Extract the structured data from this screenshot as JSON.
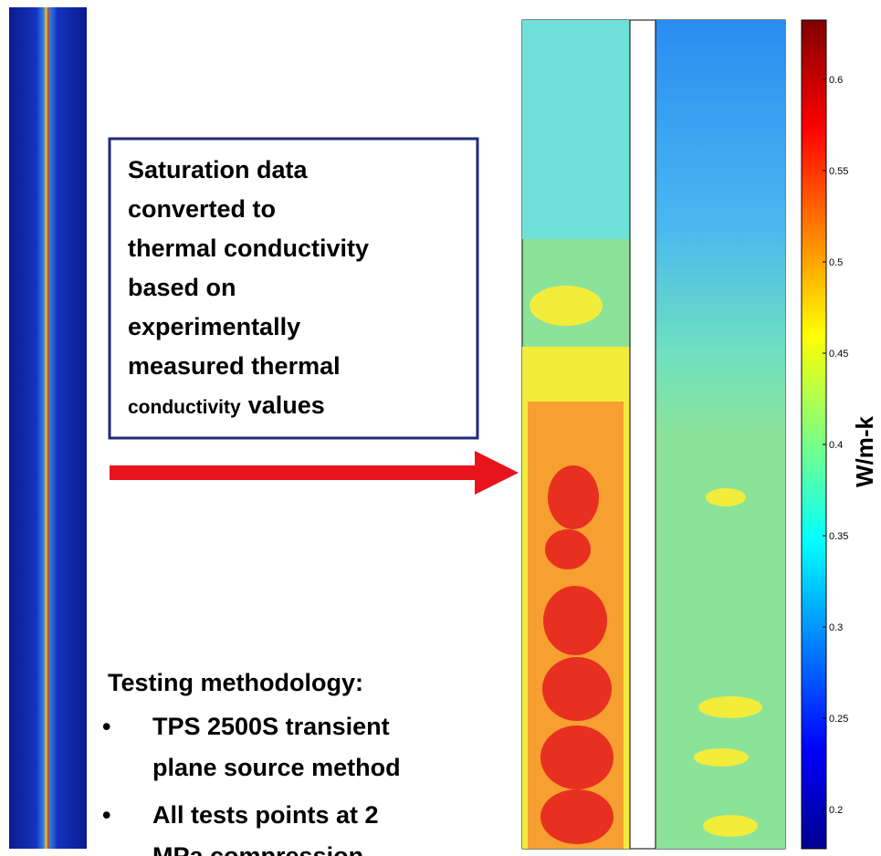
{
  "callout": {
    "lines": [
      "Saturation data",
      "converted to",
      "thermal conductivity",
      "based on",
      "experimentally",
      "measured thermal"
    ],
    "last_line_small": "conductivity",
    "last_line_large": "values"
  },
  "method": {
    "heading": "Testing methodology:",
    "bullets": [
      [
        "TPS 2500S transient",
        "plane source method"
      ],
      [
        "All tests points at 2",
        "MPa compression"
      ]
    ]
  },
  "colorbar": {
    "label": "W/m-k",
    "range": [
      0.1785,
      0.6325
    ],
    "ticks": [
      0.2,
      0.25,
      0.3,
      0.35,
      0.4,
      0.45,
      0.5,
      0.55,
      0.6
    ]
  }
}
